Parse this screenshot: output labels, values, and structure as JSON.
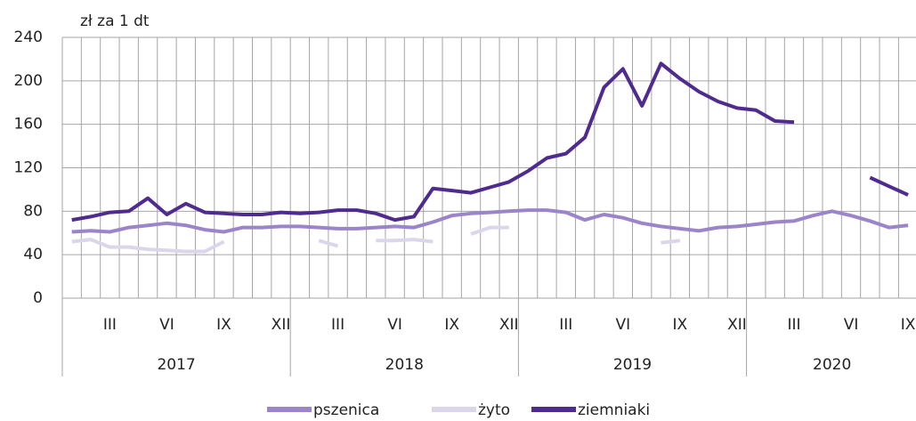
{
  "chart_data": {
    "type": "line",
    "title": "zł za 1 dt",
    "categories": [
      null,
      null,
      "III",
      null,
      null,
      "VI",
      null,
      null,
      "IX",
      null,
      null,
      "XII",
      null,
      null,
      "III",
      null,
      null,
      "VI",
      null,
      null,
      "IX",
      null,
      null,
      "XII",
      null,
      null,
      "III",
      null,
      null,
      "VI",
      null,
      null,
      "IX",
      null,
      null,
      "XII",
      null,
      null,
      "III",
      null,
      null,
      "VI",
      null,
      null,
      "IX"
    ],
    "years": [
      "2017",
      "2018",
      "2019",
      "2020"
    ],
    "series": [
      {
        "name": "pszenica",
        "color": "#9b84c9",
        "values": [
          61,
          62,
          61,
          65,
          67,
          69,
          67,
          63,
          61,
          65,
          65,
          66,
          66,
          65,
          64,
          64,
          65,
          66,
          65,
          70,
          76,
          78,
          79,
          80,
          81,
          81,
          79,
          72,
          77,
          74,
          69,
          66,
          64,
          62,
          65,
          66,
          68,
          70,
          71,
          76,
          80,
          76,
          71,
          65,
          67
        ]
      },
      {
        "name": "żyto",
        "color": "#dcd6ea",
        "values": [
          52,
          54,
          47,
          47,
          45,
          44,
          43,
          43,
          52,
          null,
          null,
          null,
          null,
          53,
          48,
          null,
          53,
          53,
          54,
          52,
          null,
          59,
          65,
          65,
          null,
          null,
          null,
          null,
          null,
          null,
          null,
          51,
          53,
          null,
          null,
          null,
          null,
          null,
          null,
          null,
          null,
          null,
          null,
          null,
          null
        ]
      },
      {
        "name": "ziemniaki",
        "color": "#4f2a8f",
        "values": [
          72,
          75,
          79,
          80,
          92,
          77,
          87,
          79,
          78,
          77,
          77,
          79,
          78,
          79,
          81,
          81,
          78,
          72,
          75,
          101,
          99,
          97,
          102,
          107,
          117,
          129,
          133,
          148,
          194,
          211,
          177,
          216,
          202,
          190,
          181,
          175,
          173,
          163,
          162,
          null,
          null,
          null,
          111,
          103,
          95
        ]
      }
    ],
    "ylim": [
      0,
      240
    ],
    "yticks": [
      0,
      40,
      80,
      120,
      160,
      200,
      240
    ],
    "grid": true
  }
}
